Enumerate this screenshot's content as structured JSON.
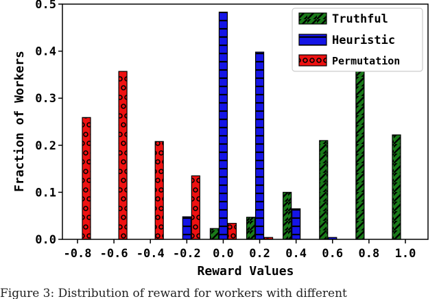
{
  "chart_data": {
    "type": "bar",
    "xlabel": "Reward Values",
    "ylabel": "Fraction of Workers",
    "x_ticks": [
      "-0.8",
      "-0.6",
      "-0.4",
      "-0.2",
      "0.0",
      "0.2",
      "0.4",
      "0.6",
      "0.8",
      "1.0"
    ],
    "y_ticks": [
      "0.0",
      "0.1",
      "0.2",
      "0.3",
      "0.4",
      "0.5"
    ],
    "ylim": [
      0,
      0.5
    ],
    "legend_position": "top-right",
    "series": [
      {
        "name": "Truthful",
        "color": "#1a7a1a",
        "hatch": "diagonal",
        "points": [
          {
            "x": -0.8,
            "y": 0.0
          },
          {
            "x": -0.6,
            "y": 0.0
          },
          {
            "x": -0.4,
            "y": 0.0
          },
          {
            "x": -0.2,
            "y": 0.0
          },
          {
            "x": 0.0,
            "y": 0.023
          },
          {
            "x": 0.2,
            "y": 0.047
          },
          {
            "x": 0.4,
            "y": 0.1
          },
          {
            "x": 0.6,
            "y": 0.21
          },
          {
            "x": 0.8,
            "y": 0.362
          },
          {
            "x": 1.0,
            "y": 0.222
          }
        ]
      },
      {
        "name": "Heuristic",
        "color": "#1515e6",
        "hatch": "horizontal",
        "points": [
          {
            "x": -0.8,
            "y": 0.0
          },
          {
            "x": -0.6,
            "y": 0.0
          },
          {
            "x": -0.4,
            "y": 0.0
          },
          {
            "x": -0.2,
            "y": 0.048
          },
          {
            "x": 0.0,
            "y": 0.483
          },
          {
            "x": 0.2,
            "y": 0.398
          },
          {
            "x": 0.4,
            "y": 0.065
          },
          {
            "x": 0.6,
            "y": 0.004
          },
          {
            "x": 0.8,
            "y": 0.0
          },
          {
            "x": 1.0,
            "y": 0.0
          }
        ]
      },
      {
        "name": "Permutation",
        "color": "#ee1111",
        "hatch": "circles",
        "points": [
          {
            "x": -0.8,
            "y": 0.259
          },
          {
            "x": -0.6,
            "y": 0.357
          },
          {
            "x": -0.4,
            "y": 0.208
          },
          {
            "x": -0.2,
            "y": 0.135
          },
          {
            "x": 0.0,
            "y": 0.034
          },
          {
            "x": 0.2,
            "y": 0.004
          },
          {
            "x": 0.4,
            "y": 0.0
          },
          {
            "x": 0.6,
            "y": 0.0
          },
          {
            "x": 0.8,
            "y": 0.0
          },
          {
            "x": 1.0,
            "y": 0.0
          }
        ]
      }
    ]
  },
  "caption_text": "Figure 3: Distribution of reward for workers with different"
}
